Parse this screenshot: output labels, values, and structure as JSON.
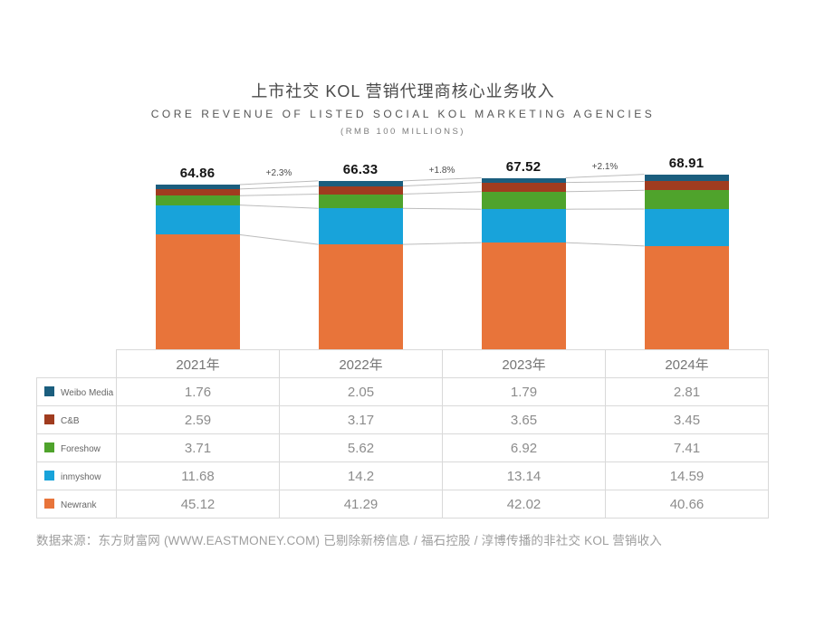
{
  "title": "上市社交 KOL 营销代理商核心业务收入",
  "subtitle": "CORE REVENUE OF LISTED SOCIAL KOL MARKETING AGENCIES",
  "unit_note": "(RMB 100 MILLIONS)",
  "source_note": "数据来源：东方财富网 (WWW.EASTMONEY.COM) 已剔除新榜信息 / 福石控股 / 淳博传播的非社交 KOL 营销收入",
  "chart_data": {
    "type": "bar",
    "stacked": true,
    "stack_order": "top-to-bottom",
    "title": "上市社交 KOL 营销代理商核心业务收入",
    "xlabel": "",
    "ylabel": "RMB 100 millions",
    "ylim": [
      0,
      70
    ],
    "grid": false,
    "legend_position": "table-left-column",
    "categories": [
      "2021年",
      "2022年",
      "2023年",
      "2024年"
    ],
    "series": [
      {
        "name": "Weibo Media",
        "color": "#1b5e7e",
        "values": [
          1.76,
          2.05,
          1.79,
          2.81
        ]
      },
      {
        "name": "C&B",
        "color": "#a03c1f",
        "values": [
          2.59,
          3.17,
          3.65,
          3.45
        ]
      },
      {
        "name": "Foreshow",
        "color": "#4fa32c",
        "values": [
          3.71,
          5.62,
          6.92,
          7.41
        ]
      },
      {
        "name": "inmyshow",
        "color": "#18a3da",
        "values": [
          11.68,
          14.2,
          13.14,
          14.59
        ]
      },
      {
        "name": "Newrank",
        "color": "#e8743a",
        "values": [
          45.12,
          41.29,
          42.02,
          40.66
        ]
      }
    ],
    "totals": [
      64.86,
      66.33,
      67.52,
      68.91
    ],
    "growth_labels": [
      "+2.3%",
      "+1.8%",
      "+2.1%"
    ],
    "connector_line_color": "#bcbcbc",
    "table_border_color": "#d9d9d9"
  }
}
